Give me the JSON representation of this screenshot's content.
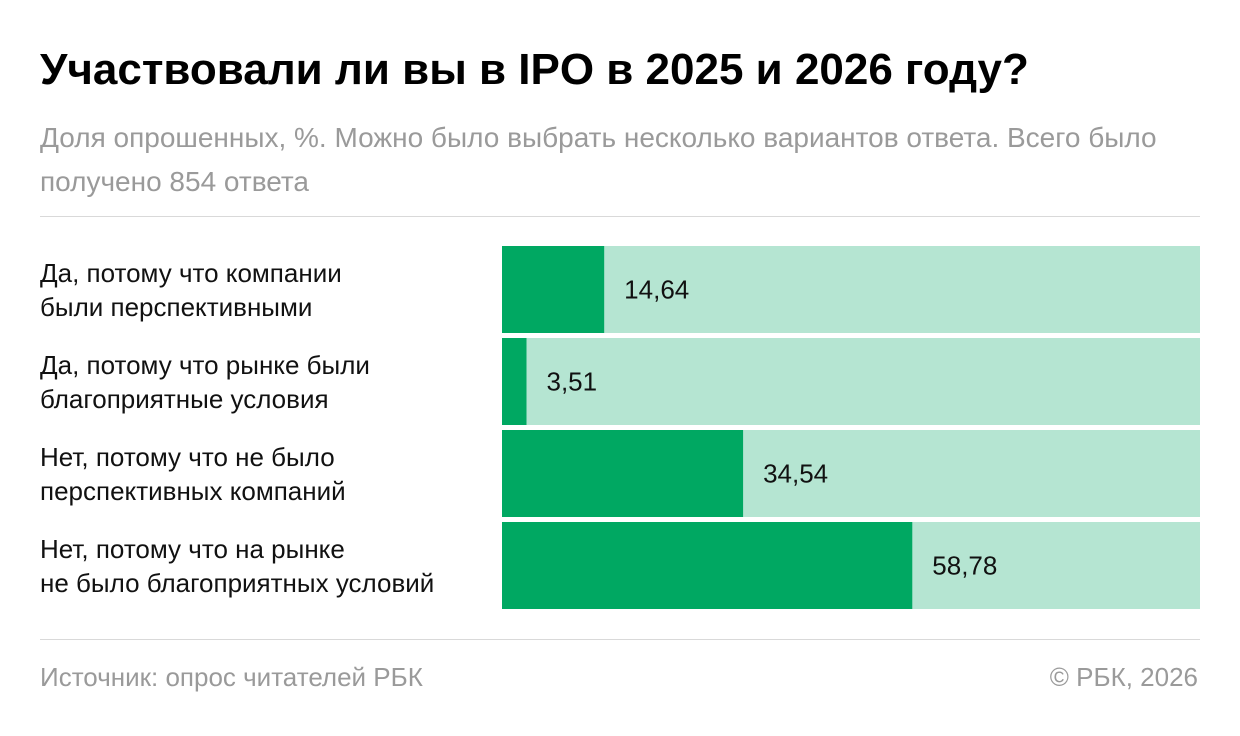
{
  "header": {
    "title": "Участвовали ли вы в IPO в 2025 и 2026 году?",
    "subtitle": "Доля опрошенных, %. Можно было выбрать несколько вариантов ответа. Всего было получено 854 ответа"
  },
  "chart_data": {
    "type": "bar",
    "orientation": "horizontal",
    "categories": [
      [
        "Да, потому что компании",
        "были перспективными"
      ],
      [
        "Да, потому что рынке были",
        "благоприятные условия"
      ],
      [
        "Нет, потому что не было",
        "перспективных компаний"
      ],
      [
        "Нет, потому что на рынке",
        "не было благоприятных условий"
      ]
    ],
    "values": [
      14.64,
      3.51,
      34.54,
      58.78
    ],
    "value_labels": [
      "14,64",
      "3,51",
      "34,54",
      "58,78"
    ],
    "xlim": [
      0,
      100
    ],
    "grid": false,
    "colors": {
      "bar": "#00a862",
      "track": "#b5e5d2",
      "label": "#111111"
    }
  },
  "footer": {
    "source": "Источник: опрос читателей РБК",
    "copyright": "© РБК, 2026"
  }
}
